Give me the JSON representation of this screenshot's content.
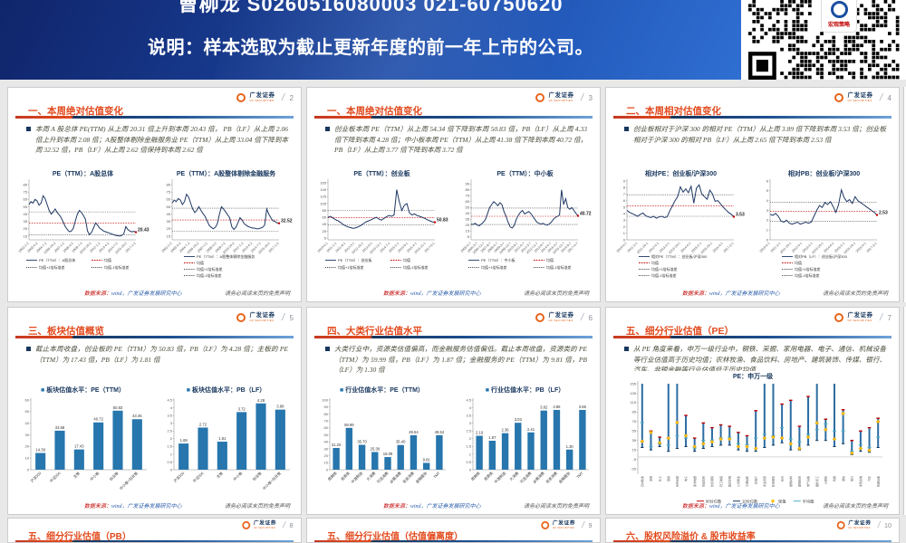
{
  "banner": {
    "line1": "曹柳龙  S0260516080003  021-60750620",
    "line2": "说明：样本选取为截止更新年度的前一年上市的公司。",
    "qr_label": "宏观策略"
  },
  "common": {
    "logo_cn": "广发证券",
    "logo_en": "GF SECURITIES",
    "slash": "/",
    "source_prefix": "数据来源：",
    "source_rest": "wind，广发证券发展研究中心",
    "disclaimer": "请务必阅读末页的免责声明"
  },
  "slides": [
    {
      "number": "2",
      "title": "一、本周绝对估值变化",
      "bullet": "本周 A 股总体 PE(TTM) 从上周 20.31 倍上升到本周 20.43 倍， PB（LF）从上周 2.06 倍上升到本周 2.08 倍；A股整体剔除金融服务业 PE（TTM）从上周 33.04 倍下降到本周 32.52 倍，PB（LF）从上周 2.62 倍保持到本周 2.62 倍",
      "charts": [
        {
          "type": "line",
          "title": "PE（TTM）：A股总体",
          "ylim": [
            10,
            90
          ],
          "yticks": [
            15,
            25,
            35,
            45,
            55,
            65,
            75,
            85
          ],
          "mean": 33,
          "sd_hi": 48,
          "sd_lo": 17,
          "end_label": "20.43",
          "legend_layout": "grid",
          "legend": [
            "PE（TTM）：A股总体",
            "均值",
            "均值+1倍标准差",
            "均值-1倍标准差"
          ],
          "xlabels": [
            "2002-1-2",
            "2003-4-2",
            "2004-7-2",
            "2005-10-2",
            "2007-1-2",
            "2008-4-2",
            "2009-7-2",
            "2010-10-2",
            "2012-1-2",
            "2013-4-2",
            "2014-7-2",
            "2015-10-2",
            "2017-1-2"
          ],
          "values": [
            58,
            62,
            60,
            65,
            63,
            57,
            60,
            70,
            66,
            58,
            50,
            45,
            48,
            52,
            47,
            44,
            40,
            34,
            28,
            24,
            21,
            22,
            26,
            36,
            45,
            50,
            47,
            43,
            38,
            22,
            17,
            20,
            26,
            33,
            30,
            26,
            24,
            22,
            21,
            20,
            19,
            18,
            17,
            16,
            15.5,
            15,
            16,
            18,
            28,
            24,
            22,
            21,
            21.5,
            20.43
          ]
        },
        {
          "type": "line",
          "title": "PE（TTM）：A股整体剔除金融服务",
          "ylim": [
            10,
            90
          ],
          "yticks": [
            15,
            25,
            35,
            45,
            55,
            65,
            75,
            85
          ],
          "mean": 37,
          "sd_hi": 53,
          "sd_lo": 22,
          "end_label": "32.52",
          "legend_layout": "stack",
          "legend": [
            "PE（TTM）：A股整体剔除金融服务",
            "均值",
            "均值+1倍标准差",
            "均值-1倍标准差"
          ],
          "xlabels": [
            "2002-1-2",
            "2003-4-2",
            "2004-7-2",
            "2005-10-2",
            "2007-1-2",
            "2008-4-2",
            "2009-7-2",
            "2010-10-2",
            "2012-1-2",
            "2013-4-2",
            "2014-7-2",
            "2015-10-2",
            "2017-1-2"
          ],
          "values": [
            60,
            64,
            62,
            66,
            64,
            58,
            62,
            72,
            68,
            60,
            52,
            47,
            50,
            55,
            50,
            46,
            42,
            36,
            30,
            27,
            25,
            27,
            32,
            45,
            55,
            52,
            48,
            44,
            40,
            28,
            24,
            27,
            33,
            40,
            37,
            32,
            30,
            28,
            27,
            26,
            26,
            25,
            25,
            26,
            27,
            30,
            52,
            45,
            40,
            36,
            35,
            33,
            32.52
          ]
        }
      ]
    },
    {
      "number": "3",
      "title": "一、本周绝对估值变化",
      "bullet": "创业板本周 PE（TTM）从上周 54.34 倍下降到本周 50.83 倍，PB（LF）从上周 4.33 倍下降到本周 4.28 倍；中小板本周 PE（TTM）从上周 41.38 倍下降到本周 40.72 倍，PB（LF）从上周 3.77 倍下降到本周 3.72 倍",
      "charts": [
        {
          "type": "line",
          "title": "PE（TTM）：创业板",
          "ylim": [
            0,
            170
          ],
          "yticks": [
            5,
            25,
            45,
            65,
            85,
            105,
            125,
            145,
            165
          ],
          "mean": 64,
          "sd_hi": 85,
          "sd_lo": 43,
          "end_label": "50.83",
          "legend_layout": "grid",
          "legend": [
            "PE（TTM）：创业板",
            "均值",
            "均值+1倍标准差",
            "均值-1倍标准差"
          ],
          "xlabels": [
            "2010-6-1",
            "2011-1-1",
            "2011-8-1",
            "2012-3-1",
            "2012-10-1",
            "2013-5-1",
            "2013-12-1",
            "2014-7-1",
            "2015-2-1",
            "2015-9-1",
            "2016-4-1",
            "2016-11-1",
            "2017-6-1"
          ],
          "values": [
            65,
            68,
            63,
            58,
            55,
            50,
            44,
            40,
            37,
            35,
            33,
            35,
            38,
            42,
            47,
            52,
            55,
            58,
            62,
            65,
            60,
            57,
            62,
            67,
            70,
            68,
            72,
            145,
            110,
            85,
            100,
            105,
            78,
            72,
            75,
            70,
            68,
            65,
            62,
            58,
            55,
            52,
            50.83
          ]
        },
        {
          "type": "line",
          "title": "PE（TTM）：中小板",
          "ylim": [
            0,
            100
          ],
          "yticks": [
            5,
            15,
            25,
            35,
            45,
            55,
            65,
            75,
            85,
            95
          ],
          "mean": 40,
          "sd_hi": 54,
          "sd_lo": 26,
          "end_label": "40.72",
          "legend_layout": "grid",
          "legend": [
            "PE（TTM）：中小板",
            "均值",
            "均值+1倍标准差",
            "均值-1倍标准差"
          ],
          "xlabels": [
            "2005-6-7",
            "2006-3-7",
            "2006-12-7",
            "2007-9-7",
            "2008-6-7",
            "2009-3-7",
            "2009-12-7",
            "2010-9-7",
            "2011-6-7",
            "2012-3-7",
            "2012-12-7",
            "2013-9-7",
            "2014-6-7",
            "2015-3-7",
            "2015-12-7",
            "2016-9-7",
            "2017-6-7"
          ],
          "values": [
            27,
            26,
            28,
            25,
            24,
            27,
            30,
            35,
            45,
            55,
            60,
            65,
            62,
            58,
            63,
            60,
            48,
            40,
            30,
            22,
            20,
            25,
            35,
            42,
            47,
            50,
            44,
            46,
            48,
            45,
            40,
            35,
            30,
            28,
            27,
            28,
            26,
            25,
            27,
            30,
            35,
            38,
            40,
            42,
            85,
            60,
            70,
            55,
            52,
            55,
            50,
            45,
            40.72
          ]
        }
      ]
    },
    {
      "number": "4",
      "title": "二、本周相对估值变化",
      "bullet": "创业板相对于沪深 300 的相对 PE（TTM）从上周 3.89 倍下降到本周 3.53 倍；创业板相对于沪深 300 的相对 PB（LF）从上周 2.65 倍下降到本周 2.53 倍",
      "charts": [
        {
          "type": "line",
          "title": "相对PE：创业板/沪深300",
          "ylim": [
            0,
            9
          ],
          "yticks": [
            0,
            1,
            2,
            3,
            4,
            5,
            6,
            7,
            8,
            9
          ],
          "mean": 5.2,
          "sd_hi": 6.9,
          "sd_lo": 3.6,
          "end_label": "3.53",
          "legend_layout": "stack",
          "legend": [
            "相对PE（TTM）：创业板/沪深300",
            "均值",
            "均值+1倍标准差",
            "均值-1倍标准差"
          ],
          "xlabels": [
            "2010-6-1",
            "2011-2-1",
            "2011-10-1",
            "2012-6-1",
            "2013-2-1",
            "2013-10-1",
            "2014-6-1",
            "2015-2-1",
            "2015-10-1",
            "2016-6-1",
            "2017-2-1"
          ],
          "values": [
            4.5,
            4.2,
            4.0,
            3.8,
            3.6,
            3.9,
            4.1,
            3.7,
            3.5,
            3.4,
            3.6,
            3.3,
            3.5,
            3.6,
            3.4,
            3.5,
            4.4,
            5.2,
            6.0,
            6.6,
            8.1,
            7.3,
            7.8,
            7.2,
            8.2,
            5.6,
            7.9,
            8.4,
            7.0,
            6.6,
            6.2,
            7.6,
            7.0,
            5.9,
            6.0,
            5.5,
            5.0,
            4.6,
            4.2,
            3.9,
            3.53
          ]
        },
        {
          "type": "line",
          "title": "相对PB：创业板/沪深300",
          "ylim": [
            0,
            6
          ],
          "yticks": [
            0,
            1,
            2,
            3,
            4,
            5,
            6
          ],
          "mean": 2.9,
          "sd_hi": 3.85,
          "sd_lo": 1.9,
          "end_label": "2.53",
          "legend_layout": "stack",
          "legend": [
            "相对PB（LF）：创业板/沪深300",
            "均值",
            "均值+1倍标准差",
            "均值-1倍标准差"
          ],
          "xlabels": [
            "2010-6-1",
            "2011-2-1",
            "2011-10-1",
            "2012-6-1",
            "2013-2-1",
            "2013-10-1",
            "2014-6-1",
            "2015-2-1",
            "2015-10-1",
            "2016-6-1",
            "2017-2-1"
          ],
          "values": [
            2.6,
            2.5,
            2.7,
            2.4,
            1.9,
            1.8,
            2.0,
            1.7,
            1.6,
            1.7,
            1.8,
            1.6,
            1.7,
            1.8,
            1.7,
            1.8,
            2.4,
            3.0,
            3.5,
            3.3,
            3.8,
            3.6,
            3.9,
            3.4,
            2.8,
            3.6,
            5.1,
            4.3,
            3.9,
            4.1,
            3.7,
            4.4,
            4.0,
            3.8,
            3.6,
            3.4,
            3.2,
            3.0,
            2.8,
            2.53
          ]
        }
      ]
    },
    {
      "number": "5",
      "title": "三、板块估值概览",
      "bullet": "截止本周收盘，创业板的 PE（TTM）为 50.83 倍，PB（LF）为 4.28 倍；主板的 PE（TTM）为 17.43 倍，PB（LF）为 1.81 倍",
      "charts": [
        {
          "type": "bar",
          "title": "板块估值水平：PE（TTM）",
          "yticks": [
            0,
            10,
            20,
            30,
            40,
            50,
            60
          ],
          "categories": [
            "沪深300",
            "中证500",
            "主板",
            "中小板",
            "创业板",
            "中小板+创业板"
          ],
          "values": [
            "14.39",
            "33.58",
            "17.43",
            "40.72",
            "50.83",
            "43.45"
          ]
        },
        {
          "type": "bar",
          "title": "板块估值水平：PB（LF）",
          "yticks": [
            0,
            0.5,
            1,
            1.5,
            2,
            2.5,
            3,
            3.5,
            4,
            4.5
          ],
          "categories": [
            "沪深300",
            "中证500",
            "主板",
            "中小板",
            "创业板",
            "中小板+创业板"
          ],
          "values": [
            "1.69",
            "2.72",
            "1.81",
            "3.72",
            "4.28",
            "3.88"
          ]
        }
      ]
    },
    {
      "number": "6",
      "title": "四、大类行业估值水平",
      "bullet": "大类行业中，资源类估值偏高，而金融服务估值偏低。截止本周收盘，资源类的 PE（TTM）为 59.99 倍，PB（LF）为 1.87 倍；金融服务的 PE（TTM）为 9.81 倍，PB（LF）为 1.30 倍",
      "charts": [
        {
          "type": "bar",
          "title": "行业估值水平：PE（TTM）",
          "yticks": [
            0,
            10,
            20,
            30,
            40,
            50,
            60,
            70,
            80,
            90,
            100
          ],
          "categories": [
            "周期类",
            "资源类",
            "中游制造",
            "大消费",
            "可选消费",
            "必需消费",
            "信息消费",
            "金融服务",
            "TMT"
          ],
          "values": [
            "31.20",
            "59.99",
            "35.70",
            "25.38",
            "18.09",
            "35.40",
            "49.54",
            "9.81",
            "49.54"
          ]
        },
        {
          "type": "bar",
          "title": "行业估值水平：PB（LF）",
          "yticks": [
            0,
            0.5,
            1,
            1.5,
            2,
            2.5,
            3,
            3.5,
            4,
            4.5
          ],
          "categories": [
            "周期类",
            "资源类",
            "中游制造",
            "大消费",
            "可选消费",
            "必需消费",
            "信息消费",
            "金融服务",
            "TMT"
          ],
          "values": [
            "2.19",
            "1.87",
            "2.36",
            "3.03",
            "2.41",
            "3.82",
            "3.86",
            "1.30",
            "3.86"
          ]
        }
      ]
    },
    {
      "number": "7",
      "title": "五、细分行业估值（PE）",
      "bullet": "从 PE 角度来看，申万一级行业中，钢铁、采掘、家用电器、电子、通信、机械设备等行业估值高于历史均值；农林牧渔、食品饮料、房地产、建筑装饰、传媒、银行、汽车、非银金融等行业估值低于历史均值",
      "charts": [
        {
          "type": "range",
          "title": "PE：申万一级",
          "ylim": [
            -25,
            157
          ],
          "yticks": [
            -25,
            -5,
            15,
            35,
            55,
            75,
            95,
            115,
            135,
            155
          ],
          "legend": [
            "90分位数",
            "10分位数",
            "现值",
            "平均值"
          ],
          "categories": [
            "农林牧渔",
            "采掘",
            "化工",
            "钢铁",
            "有色金属",
            "电子",
            "家用电器",
            "食品饮料",
            "纺织服装",
            "轻工制造",
            "医药生物",
            "公用事业",
            "交通运输",
            "房地产",
            "商业贸易",
            "休闲服务",
            "综合",
            "建筑材料",
            "建筑装饰",
            "电气设备",
            "国防军工",
            "计算机",
            "传媒",
            "通信",
            "银行",
            "非银金融",
            "汽车",
            "机械设备"
          ],
          "p10": [
            20,
            15,
            22,
            12,
            18,
            22,
            12,
            18,
            22,
            25,
            25,
            15,
            12,
            12,
            20,
            25,
            30,
            15,
            15,
            25,
            35,
            35,
            22,
            28,
            5,
            12,
            10,
            20
          ],
          "p90": [
            160,
            55,
            42,
            170,
            170,
            88,
            40,
            72,
            62,
            68,
            65,
            52,
            45,
            98,
            170,
            170,
            112,
            120,
            65,
            128,
            170,
            80,
            170,
            100,
            35,
            55,
            62,
            82
          ],
          "cur": [
            33,
            52,
            30,
            40,
            73,
            45,
            22,
            28,
            32,
            38,
            38,
            22,
            22,
            18,
            40,
            42,
            40,
            28,
            18,
            42,
            72,
            58,
            38,
            92,
            8,
            18,
            14,
            75
          ],
          "avg": [
            73,
            22,
            28,
            25,
            45,
            40,
            19,
            35,
            36,
            40,
            42,
            28,
            26,
            40,
            48,
            45,
            62,
            38,
            32,
            48,
            58,
            70,
            55,
            55,
            12,
            25,
            20,
            42
          ]
        }
      ]
    },
    {
      "number": "8",
      "title": "五、细分行业估值（PB）",
      "bullet": "",
      "charts": []
    },
    {
      "number": "9",
      "title": "五、细分行业估值（估值偏离度）",
      "bullet": "",
      "charts": []
    },
    {
      "number": "10",
      "title": "六、股权风险溢价 & 股市收益率",
      "bullet": "",
      "charts": []
    }
  ]
}
